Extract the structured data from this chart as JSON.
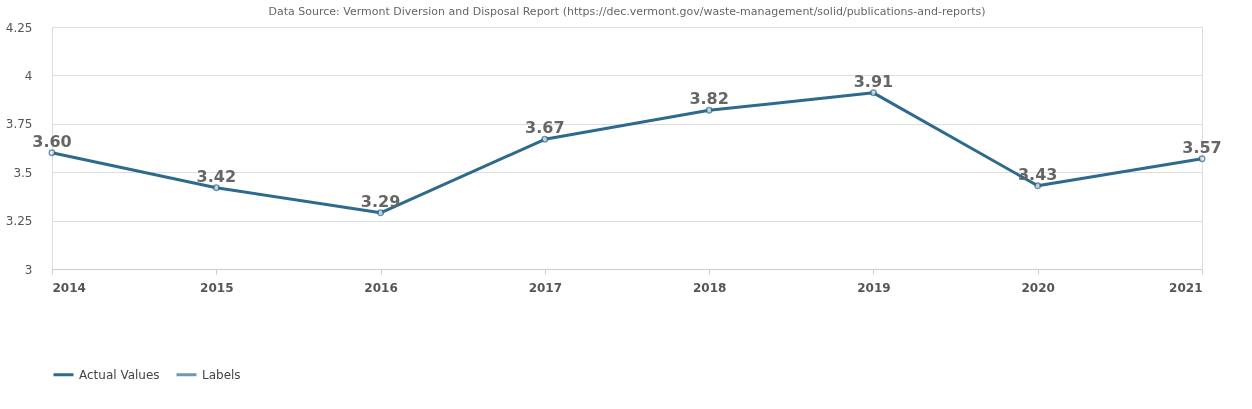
{
  "chart_data": {
    "type": "line",
    "annotations": [
      "Data Source: Vermont Diversion and Disposal Report (https://dec.vermont.gov/waste-management/solid/publications-and-reports)"
    ],
    "categories": [
      "2014",
      "2015",
      "2016",
      "2017",
      "2018",
      "2019",
      "2020",
      "2021"
    ],
    "series": [
      {
        "name": "Actual Values",
        "color": "#2d6a8c",
        "values": [
          3.6,
          3.42,
          3.29,
          3.67,
          3.82,
          3.91,
          3.43,
          3.57
        ],
        "value_labels": [
          "3.60",
          "3.42",
          "3.29",
          "3.67",
          "3.82",
          "3.91",
          "3.43",
          "3.57"
        ],
        "marker": "circle"
      },
      {
        "name": "Labels",
        "color": "#7096b4",
        "values": [
          null,
          null,
          null,
          null,
          null,
          null,
          null,
          null
        ]
      }
    ],
    "ylim": [
      3,
      4.25
    ],
    "yticks": [
      3,
      3.25,
      3.5,
      3.75,
      4,
      4.25
    ],
    "grid": "y",
    "legend": "bottom",
    "line_style": "solid"
  }
}
